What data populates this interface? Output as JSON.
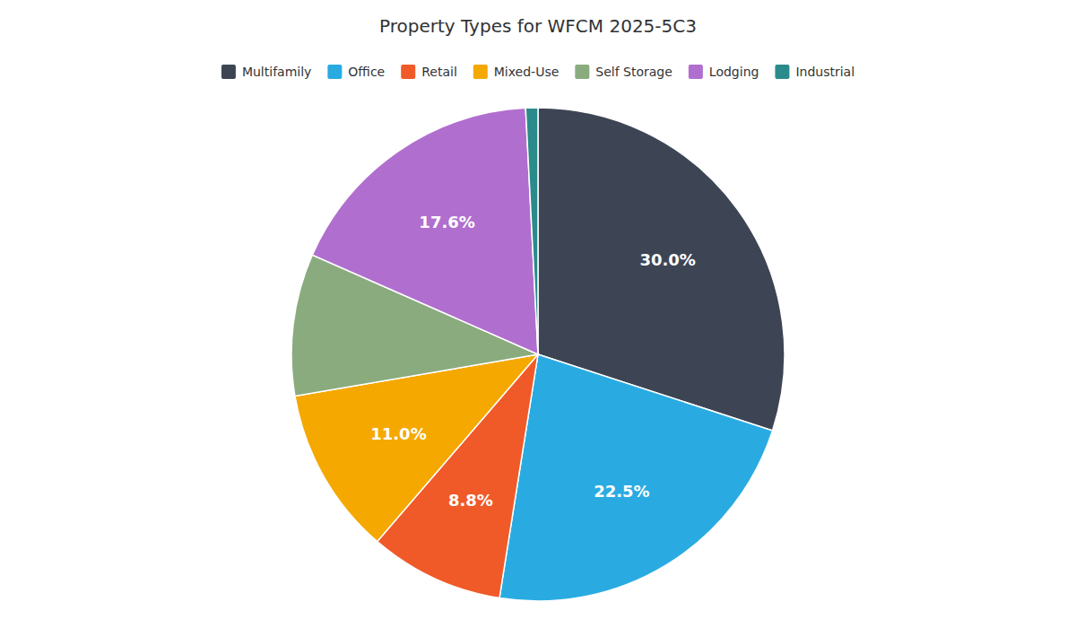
{
  "chart_data": {
    "type": "pie",
    "title": "Property Types for WFCM 2025-5C3",
    "categories": [
      "Multifamily",
      "Office",
      "Retail",
      "Mixed-Use",
      "Self Storage",
      "Lodging",
      "Industrial"
    ],
    "values": [
      30.0,
      22.5,
      8.8,
      11.0,
      9.3,
      17.6,
      0.8
    ],
    "value_labels": [
      "30.0%",
      "22.5%",
      "8.8%",
      "11.0%",
      null,
      "17.6%",
      null
    ],
    "colors": [
      "#3d4555",
      "#29abe2",
      "#f05a28",
      "#f5a800",
      "#8aab7e",
      "#b06fce",
      "#2b8b8b"
    ],
    "data_labels": true,
    "legend": "top"
  }
}
